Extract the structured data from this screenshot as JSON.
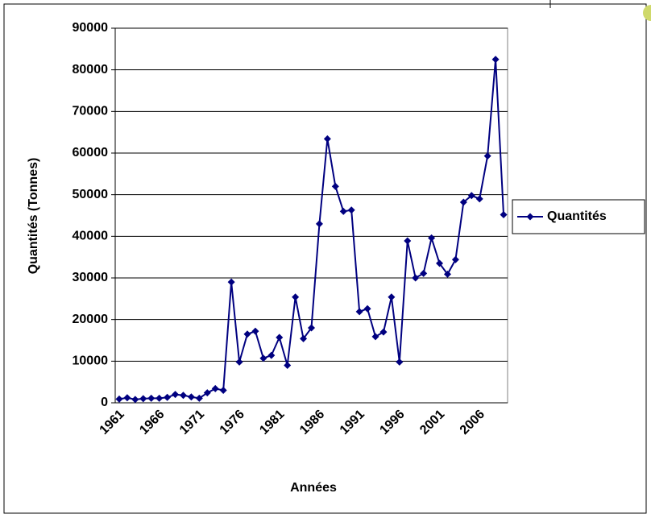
{
  "chart_data": {
    "type": "line",
    "x_label": "Années",
    "y_label": "Quantités (Tonnes)",
    "categories": [
      "1961",
      null,
      null,
      null,
      null,
      "1966",
      null,
      null,
      null,
      null,
      "1971",
      null,
      null,
      null,
      null,
      "1976",
      null,
      null,
      null,
      null,
      "1981",
      null,
      null,
      null,
      null,
      "1986",
      null,
      null,
      null,
      null,
      "1991",
      null,
      null,
      null,
      null,
      "1996",
      null,
      null,
      null,
      null,
      "2001",
      null,
      null,
      null,
      null,
      "2006",
      null,
      null,
      null
    ],
    "series": [
      {
        "name": "Quantités",
        "color": "#000080",
        "values": [
          900,
          1200,
          800,
          1000,
          1100,
          1100,
          1300,
          2000,
          1800,
          1400,
          1100,
          2400,
          3400,
          3000,
          29000,
          9800,
          16500,
          17200,
          10700,
          11400,
          15700,
          9000,
          25400,
          15400,
          18000,
          43000,
          63400,
          52000,
          46000,
          46300,
          21900,
          22600,
          15900,
          17000,
          25400,
          9800,
          38900,
          30000,
          31100,
          39600,
          33500,
          30900,
          34400,
          48200,
          49800,
          49000,
          59300,
          82500,
          45200
        ]
      }
    ],
    "ylim": [
      0,
      90000
    ],
    "yticks": [
      0,
      10000,
      20000,
      30000,
      40000,
      50000,
      60000,
      70000,
      80000,
      90000
    ],
    "grid": true,
    "legend": "right"
  }
}
